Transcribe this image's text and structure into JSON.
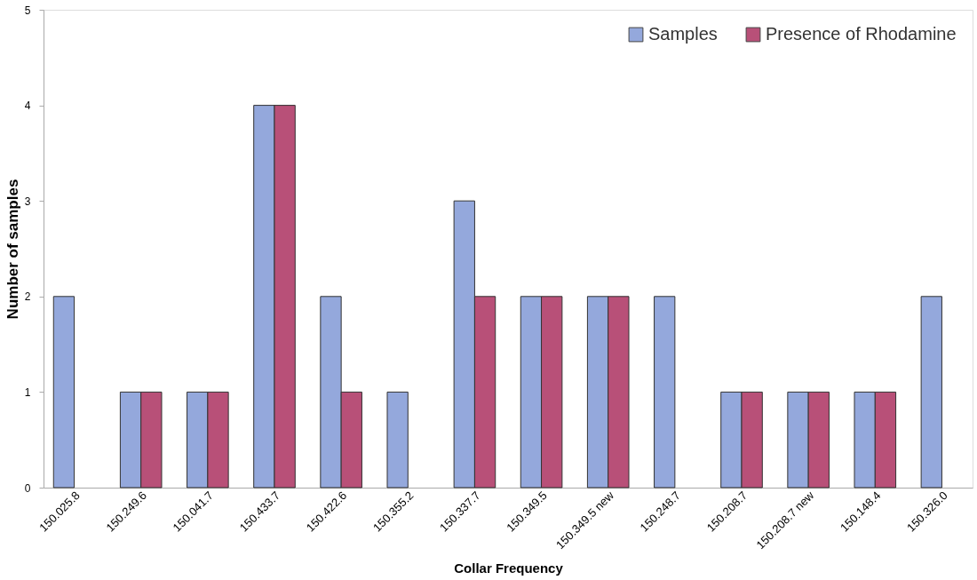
{
  "chart_data": {
    "type": "bar",
    "xlabel": "Collar Frequency",
    "ylabel": "Number of samples",
    "categories": [
      "150.025.8",
      "150.249.6",
      "150.041.7",
      "150.433.7",
      "150.422.6",
      "150.355.2",
      "150.337.7",
      "150.349.5",
      "150.349.5 new",
      "150.248.7",
      "150.208.7",
      "150.208.7 new",
      "150.148.4",
      "150.326.0"
    ],
    "series": [
      {
        "name": "Samples",
        "color": "#94a8dc",
        "values": [
          2,
          1,
          1,
          4,
          2,
          1,
          3,
          2,
          2,
          2,
          1,
          1,
          1,
          2
        ]
      },
      {
        "name": "Presence of Rhodamine",
        "color": "#b85078",
        "values": [
          0,
          1,
          1,
          4,
          1,
          0,
          2,
          2,
          2,
          0,
          1,
          1,
          1,
          0
        ]
      }
    ],
    "ylim": [
      0,
      5
    ],
    "yticks": [
      0,
      1,
      2,
      3,
      4,
      5
    ],
    "grid": false,
    "legend": "top right"
  }
}
